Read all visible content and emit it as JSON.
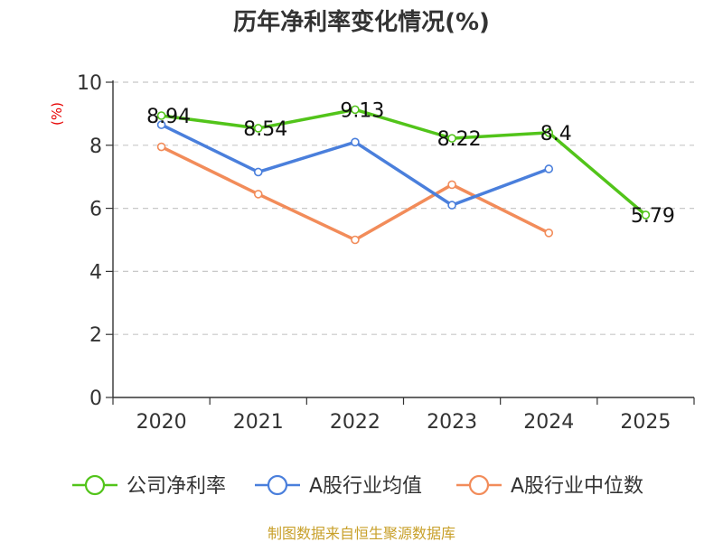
{
  "chart_data": {
    "type": "line",
    "title": "历年净利率变化情况(%)",
    "ylabel": "(%)",
    "xlabel": "",
    "categories": [
      "2020",
      "2021",
      "2022",
      "2023",
      "2024",
      "2025"
    ],
    "ylim": [
      0,
      10
    ],
    "yticks": [
      0,
      2,
      4,
      6,
      8,
      10
    ],
    "grid": true,
    "legend_position": "bottom",
    "series": [
      {
        "name": "公司净利率",
        "color": "#52c41a",
        "values": [
          8.94,
          8.54,
          9.13,
          8.22,
          8.4,
          5.79
        ],
        "labels": [
          "8.94",
          "8.54",
          "9.13",
          "8.22",
          "8.4",
          "5.79"
        ]
      },
      {
        "name": "A股行业均值",
        "color": "#4a7fdc",
        "values": [
          8.65,
          7.15,
          8.1,
          6.1,
          7.25,
          null
        ]
      },
      {
        "name": "A股行业中位数",
        "color": "#f28c5a",
        "values": [
          7.95,
          6.45,
          5.0,
          6.75,
          5.22,
          null
        ]
      }
    ]
  },
  "source": "制图数据来自恒生聚源数据库"
}
